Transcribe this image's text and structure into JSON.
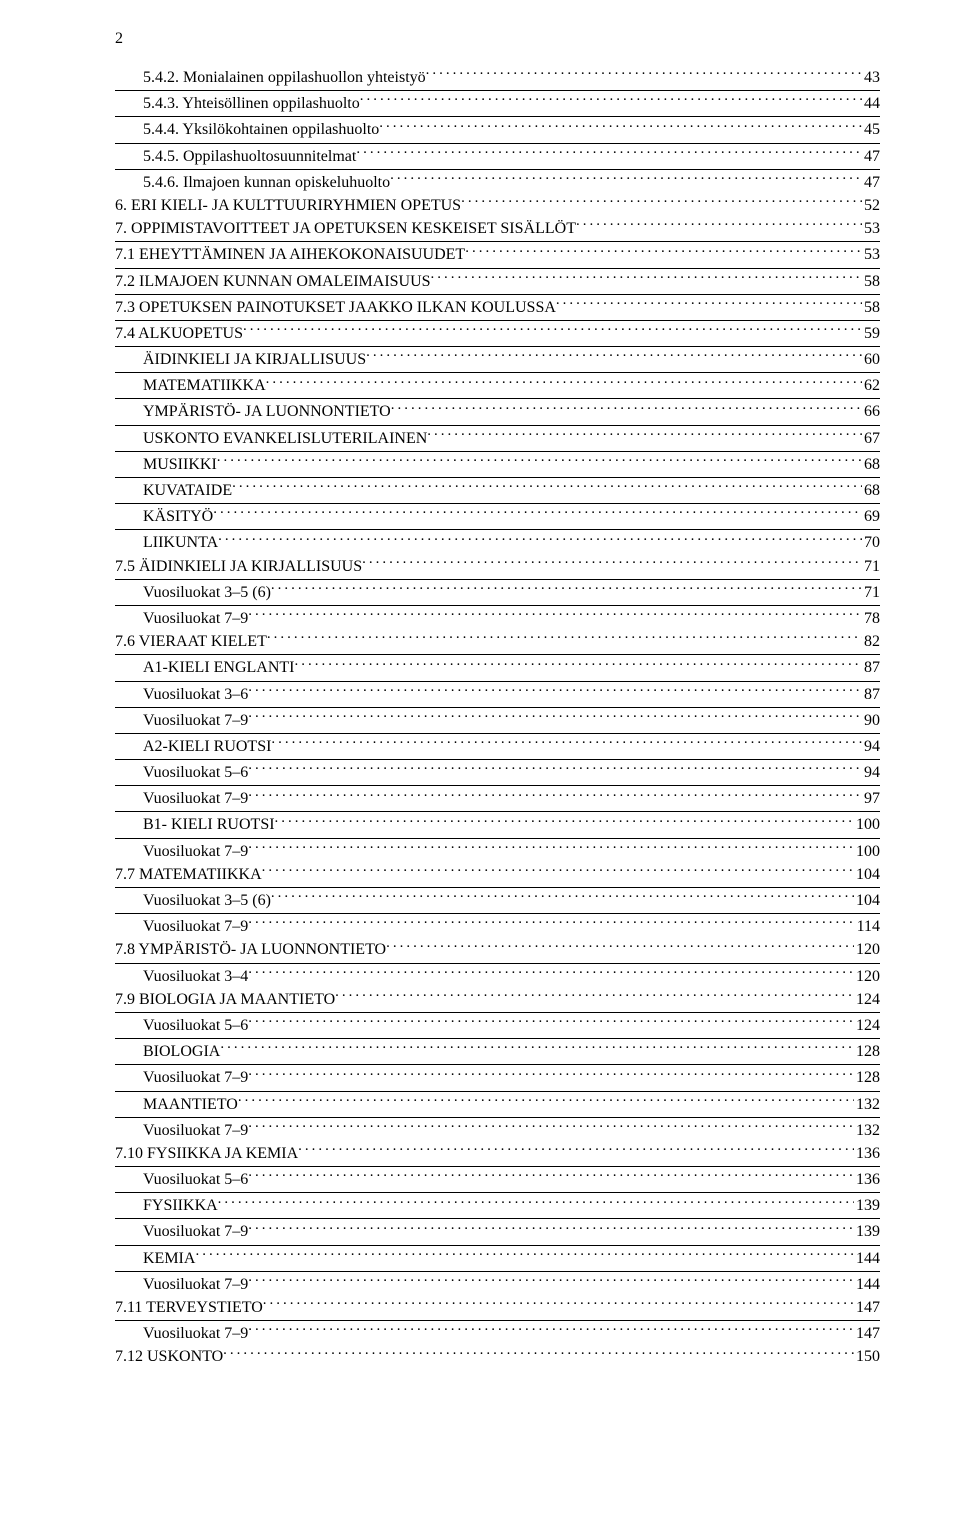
{
  "page_number": "2",
  "toc": [
    {
      "indent": 1,
      "border": true,
      "label": "5.4.2. Monialainen oppilashuollon yhteistyö",
      "page": "43"
    },
    {
      "indent": 1,
      "border": true,
      "label": "5.4.3. Yhteisöllinen oppilashuolto",
      "page": "44"
    },
    {
      "indent": 1,
      "border": true,
      "label": "5.4.4. Yksilökohtainen oppilashuolto",
      "page": "45"
    },
    {
      "indent": 1,
      "border": true,
      "label": "5.4.5. Oppilashuoltosuunnitelmat",
      "page": "47"
    },
    {
      "indent": 1,
      "border": false,
      "label": "5.4.6. Ilmajoen kunnan opiskeluhuolto",
      "page": "47"
    },
    {
      "indent": 0,
      "border": false,
      "label": "6. ERI KIELI- JA KULTTUURIRYHMIEN OPETUS",
      "page": "52"
    },
    {
      "indent": 0,
      "border": true,
      "label": "7. OPPIMISTAVOITTEET JA OPETUKSEN KESKEISET SISÄLLÖT",
      "page": "53"
    },
    {
      "indent": 0,
      "border": true,
      "label": "7.1 EHEYTTÄMINEN JA AIHEKOKONAISUUDET",
      "page": "53"
    },
    {
      "indent": 0,
      "border": true,
      "label": "7.2 ILMAJOEN KUNNAN OMALEIMAISUUS",
      "page": "58"
    },
    {
      "indent": 0,
      "border": true,
      "label": "7.3 OPETUKSEN PAINOTUKSET JAAKKO ILKAN KOULUSSA",
      "page": "58"
    },
    {
      "indent": 0,
      "border": true,
      "label": "7.4  ALKUOPETUS",
      "page": "59"
    },
    {
      "indent": 1,
      "border": true,
      "label": "ÄIDINKIELI JA KIRJALLISUUS",
      "page": "60"
    },
    {
      "indent": 1,
      "border": true,
      "label": "MATEMATIIKKA",
      "page": "62"
    },
    {
      "indent": 1,
      "border": true,
      "label": "YMPÄRISTÖ- JA LUONNONTIETO",
      "page": "66"
    },
    {
      "indent": 1,
      "border": true,
      "label": "USKONTO EVANKELISLUTERILAINEN",
      "page": "67"
    },
    {
      "indent": 1,
      "border": true,
      "label": "MUSIIKKI",
      "page": "68"
    },
    {
      "indent": 1,
      "border": true,
      "label": "KUVATAIDE",
      "page": "68"
    },
    {
      "indent": 1,
      "border": true,
      "label": "KÄSITYÖ",
      "page": "69"
    },
    {
      "indent": 1,
      "border": false,
      "label": "LIIKUNTA",
      "page": "70"
    },
    {
      "indent": 0,
      "border": true,
      "label": "7.5 ÄIDINKIELI JA KIRJALLISUUS",
      "page": "71"
    },
    {
      "indent": 1,
      "border": true,
      "label": "Vuosiluokat 3–5 (6)",
      "page": "71"
    },
    {
      "indent": 1,
      "border": false,
      "label": "Vuosiluokat 7–9",
      "page": "78"
    },
    {
      "indent": 0,
      "border": true,
      "label": "7.6 VIERAAT KIELET",
      "page": "82"
    },
    {
      "indent": 1,
      "border": true,
      "label": "A1-KIELI  ENGLANTI",
      "page": "87"
    },
    {
      "indent": 1,
      "border": true,
      "label": "Vuosiluokat 3–6",
      "page": "87"
    },
    {
      "indent": 1,
      "border": true,
      "label": "Vuosiluokat 7–9",
      "page": "90"
    },
    {
      "indent": 1,
      "border": true,
      "label": "A2-KIELI RUOTSI",
      "page": "94"
    },
    {
      "indent": 1,
      "border": true,
      "label": "Vuosiluokat 5–6",
      "page": "94"
    },
    {
      "indent": 1,
      "border": true,
      "label": "Vuosiluokat 7–9",
      "page": "97"
    },
    {
      "indent": 1,
      "border": true,
      "label": "B1- KIELI RUOTSI",
      "page": "100"
    },
    {
      "indent": 1,
      "border": false,
      "label": "Vuosiluokat 7–9",
      "page": "100"
    },
    {
      "indent": 0,
      "border": true,
      "label": "7.7 MATEMATIIKKA",
      "page": "104"
    },
    {
      "indent": 1,
      "border": true,
      "label": "Vuosiluokat 3–5 (6)",
      "page": "104"
    },
    {
      "indent": 1,
      "border": false,
      "label": "Vuosiluokat 7–9",
      "page": "114"
    },
    {
      "indent": 0,
      "border": true,
      "label": "7.8 YMPÄRISTÖ- JA LUONNONTIETO",
      "page": "120"
    },
    {
      "indent": 1,
      "border": false,
      "label": "Vuosiluokat 3–4",
      "page": "120"
    },
    {
      "indent": 0,
      "border": true,
      "label": "7.9 BIOLOGIA JA MAANTIETO",
      "page": "124"
    },
    {
      "indent": 1,
      "border": true,
      "label": "Vuosiluokat 5–6",
      "page": "124"
    },
    {
      "indent": 1,
      "border": true,
      "label": "BIOLOGIA",
      "page": "128"
    },
    {
      "indent": 1,
      "border": true,
      "label": "Vuosiluokat 7–9",
      "page": "128"
    },
    {
      "indent": 1,
      "border": true,
      "label": "MAANTIETO",
      "page": "132"
    },
    {
      "indent": 1,
      "border": false,
      "label": "Vuosiluokat 7–9",
      "page": "132"
    },
    {
      "indent": 0,
      "border": true,
      "label": "7.10  FYSIIKKA JA KEMIA",
      "page": "136"
    },
    {
      "indent": 1,
      "border": true,
      "label": "Vuosiluokat 5–6",
      "page": "136"
    },
    {
      "indent": 1,
      "border": true,
      "label": "FYSIIKKA",
      "page": "139"
    },
    {
      "indent": 1,
      "border": true,
      "label": "Vuosiluokat 7–9",
      "page": "139"
    },
    {
      "indent": 1,
      "border": true,
      "label": "KEMIA",
      "page": "144"
    },
    {
      "indent": 1,
      "border": false,
      "label": "Vuosiluokat 7–9",
      "page": "144"
    },
    {
      "indent": 0,
      "border": true,
      "label": "7.11  TERVEYSTIETO",
      "page": "147"
    },
    {
      "indent": 1,
      "border": false,
      "label": "Vuosiluokat 7–9",
      "page": "147"
    },
    {
      "indent": 0,
      "border": false,
      "label": "7.12  USKONTO",
      "page": "150"
    }
  ]
}
